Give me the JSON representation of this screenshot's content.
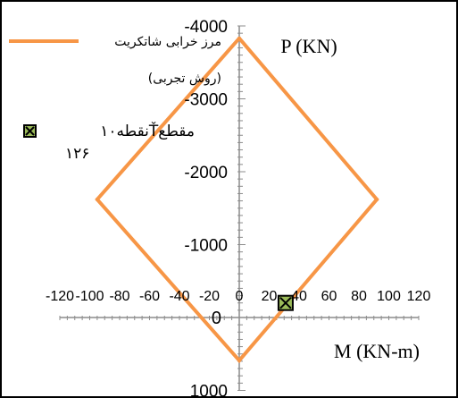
{
  "chart_data": {
    "type": "line",
    "x_axis": {
      "label": "M (KN-m)",
      "range": [
        -120,
        120
      ],
      "ticks": [
        -120,
        -100,
        -80,
        -60,
        -40,
        -20,
        0,
        20,
        40,
        60,
        80,
        100,
        120
      ],
      "tick_labels": [
        "-120",
        "-100",
        "-80",
        "-60",
        "-40",
        "-20",
        "0",
        "20",
        "40",
        "60",
        "80",
        "100",
        "120"
      ]
    },
    "y_axis": {
      "label": "P (KN)",
      "reversed": true,
      "range": [
        -4000,
        1000
      ],
      "ticks": [
        -4000,
        -3000,
        -2000,
        -1000,
        0,
        1000
      ],
      "tick_labels": [
        "-4000",
        "-3000",
        "-2000",
        "-1000",
        "0",
        "1000"
      ]
    },
    "series": [
      {
        "name": "مرز خرابی شاتکریت\n(روش تجربی)",
        "kind": "line",
        "color": "#F79646",
        "x": [
          0,
          92,
          0,
          -95,
          0
        ],
        "y": [
          -3830,
          -1620,
          590,
          -1620,
          -3830
        ]
      },
      {
        "name": "نقطه۱۰Ťمقطع\n۱۲۶",
        "kind": "marker",
        "marker": "square-x",
        "color": "#9BBB59",
        "x": [
          31
        ],
        "y": [
          -200
        ]
      }
    ],
    "legend": {
      "placement": "top-left"
    },
    "grid": false
  }
}
